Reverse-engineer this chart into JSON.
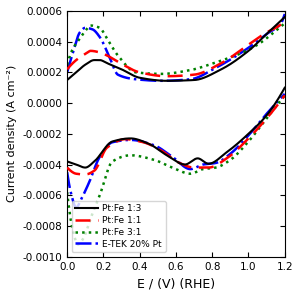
{
  "title": "",
  "xlabel": "E / (V) (RHE)",
  "ylabel": "Current density (A cm⁻²)",
  "xlim": [
    0.0,
    1.2
  ],
  "ylim": [
    -0.001,
    0.0006
  ],
  "yticks": [
    -0.001,
    -0.0008,
    -0.0006,
    -0.0004,
    -0.0002,
    0.0,
    0.0002,
    0.0004,
    0.0006
  ],
  "xticks": [
    0.0,
    0.2,
    0.4,
    0.6,
    0.8,
    1.0,
    1.2
  ],
  "background_color": "#ffffff"
}
